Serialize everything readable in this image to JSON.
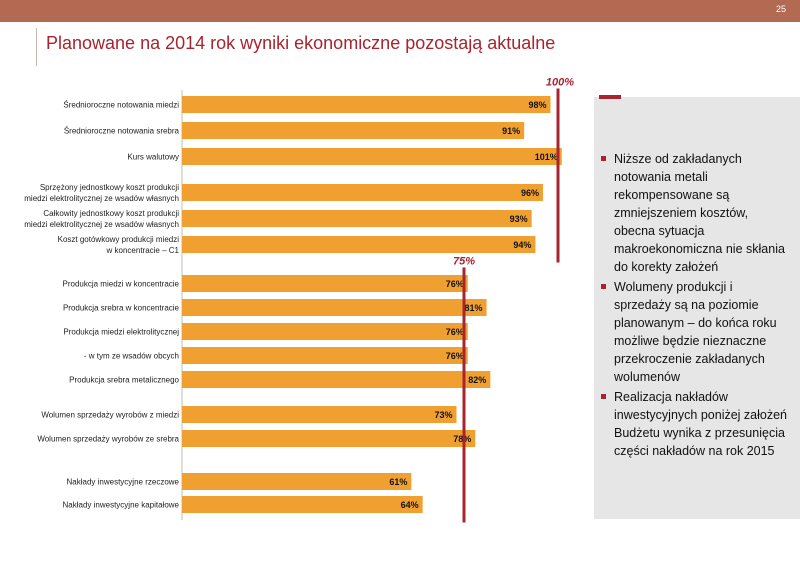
{
  "page": {
    "number": "25",
    "title": "Planowane na 2014 rok wyniki ekonomiczne pozostają aktualne"
  },
  "chart_data": {
    "type": "bar",
    "orientation": "horizontal",
    "unit": "%",
    "xlim": [
      0,
      100
    ],
    "colors": {
      "bar": "#f0a030",
      "reference": "#a8242e"
    },
    "reference_lines": [
      {
        "label": "100%",
        "value": 100,
        "applies_to_groups": [
          0,
          1
        ]
      },
      {
        "label": "75%",
        "value": 75,
        "applies_to_groups": [
          2,
          3,
          4
        ]
      }
    ],
    "groups": [
      {
        "rows": [
          {
            "category": [
              "Średnioroczne notowania miedzi"
            ],
            "value": 98,
            "label": "98%"
          },
          {
            "category": [
              "Średnioroczne notowania srebra"
            ],
            "value": 91,
            "label": "91%"
          },
          {
            "category": [
              "Kurs walutowy"
            ],
            "value": 101,
            "label": "101%"
          }
        ]
      },
      {
        "rows": [
          {
            "category": [
              "Sprzężony jednostkowy koszt produkcji",
              "miedzi elektrolitycznej ze wsadów własnych"
            ],
            "value": 96,
            "label": "96%"
          },
          {
            "category": [
              "Całkowity jednostkowy koszt produkcji",
              "miedzi elektrolitycznej ze wsadów własnych"
            ],
            "value": 93,
            "label": "93%"
          },
          {
            "category": [
              "Koszt gotówkowy produkcji miedzi",
              "w koncentracie – C1"
            ],
            "value": 94,
            "label": "94%"
          }
        ]
      },
      {
        "rows": [
          {
            "category": [
              "Produkcja miedzi w koncentracie"
            ],
            "value": 76,
            "label": "76%"
          },
          {
            "category": [
              "Produkcja srebra w koncentracie"
            ],
            "value": 81,
            "label": "81%"
          },
          {
            "category": [
              "Produkcja miedzi elektrolitycznej"
            ],
            "value": 76,
            "label": "76%"
          },
          {
            "category": [
              "- w tym ze wsadów obcych"
            ],
            "value": 76,
            "label": "76%"
          },
          {
            "category": [
              "Produkcja srebra metalicznego"
            ],
            "value": 82,
            "label": "82%"
          }
        ]
      },
      {
        "rows": [
          {
            "category": [
              "Wolumen sprzedaży wyrobów z miedzi"
            ],
            "value": 73,
            "label": "73%"
          },
          {
            "category": [
              "Wolumen sprzedaży wyrobów ze srebra"
            ],
            "value": 78,
            "label": "78%"
          }
        ]
      },
      {
        "rows": [
          {
            "category": [
              "Nakłady inwestycyjne rzeczowe"
            ],
            "value": 61,
            "label": "61%"
          },
          {
            "category": [
              "Nakłady inwestycyjne kapitałowe"
            ],
            "value": 64,
            "label": "64%"
          }
        ]
      }
    ]
  },
  "side": {
    "bullets": [
      "Niższe od zakładanych notowania metali rekompensowane są zmniejszeniem kosztów, obecna sytuacja makroekonomiczna nie skłania do korekty założeń",
      "Wolumeny produkcji i sprzedaży są na poziomie planowanym – do końca roku możliwe będzie nieznaczne przekroczenie zakładanych wolumenów",
      "Realizacja nakładów inwestycyjnych poniżej założeń Budżetu wynika z przesunięcia części nakładów na rok 2015"
    ]
  }
}
